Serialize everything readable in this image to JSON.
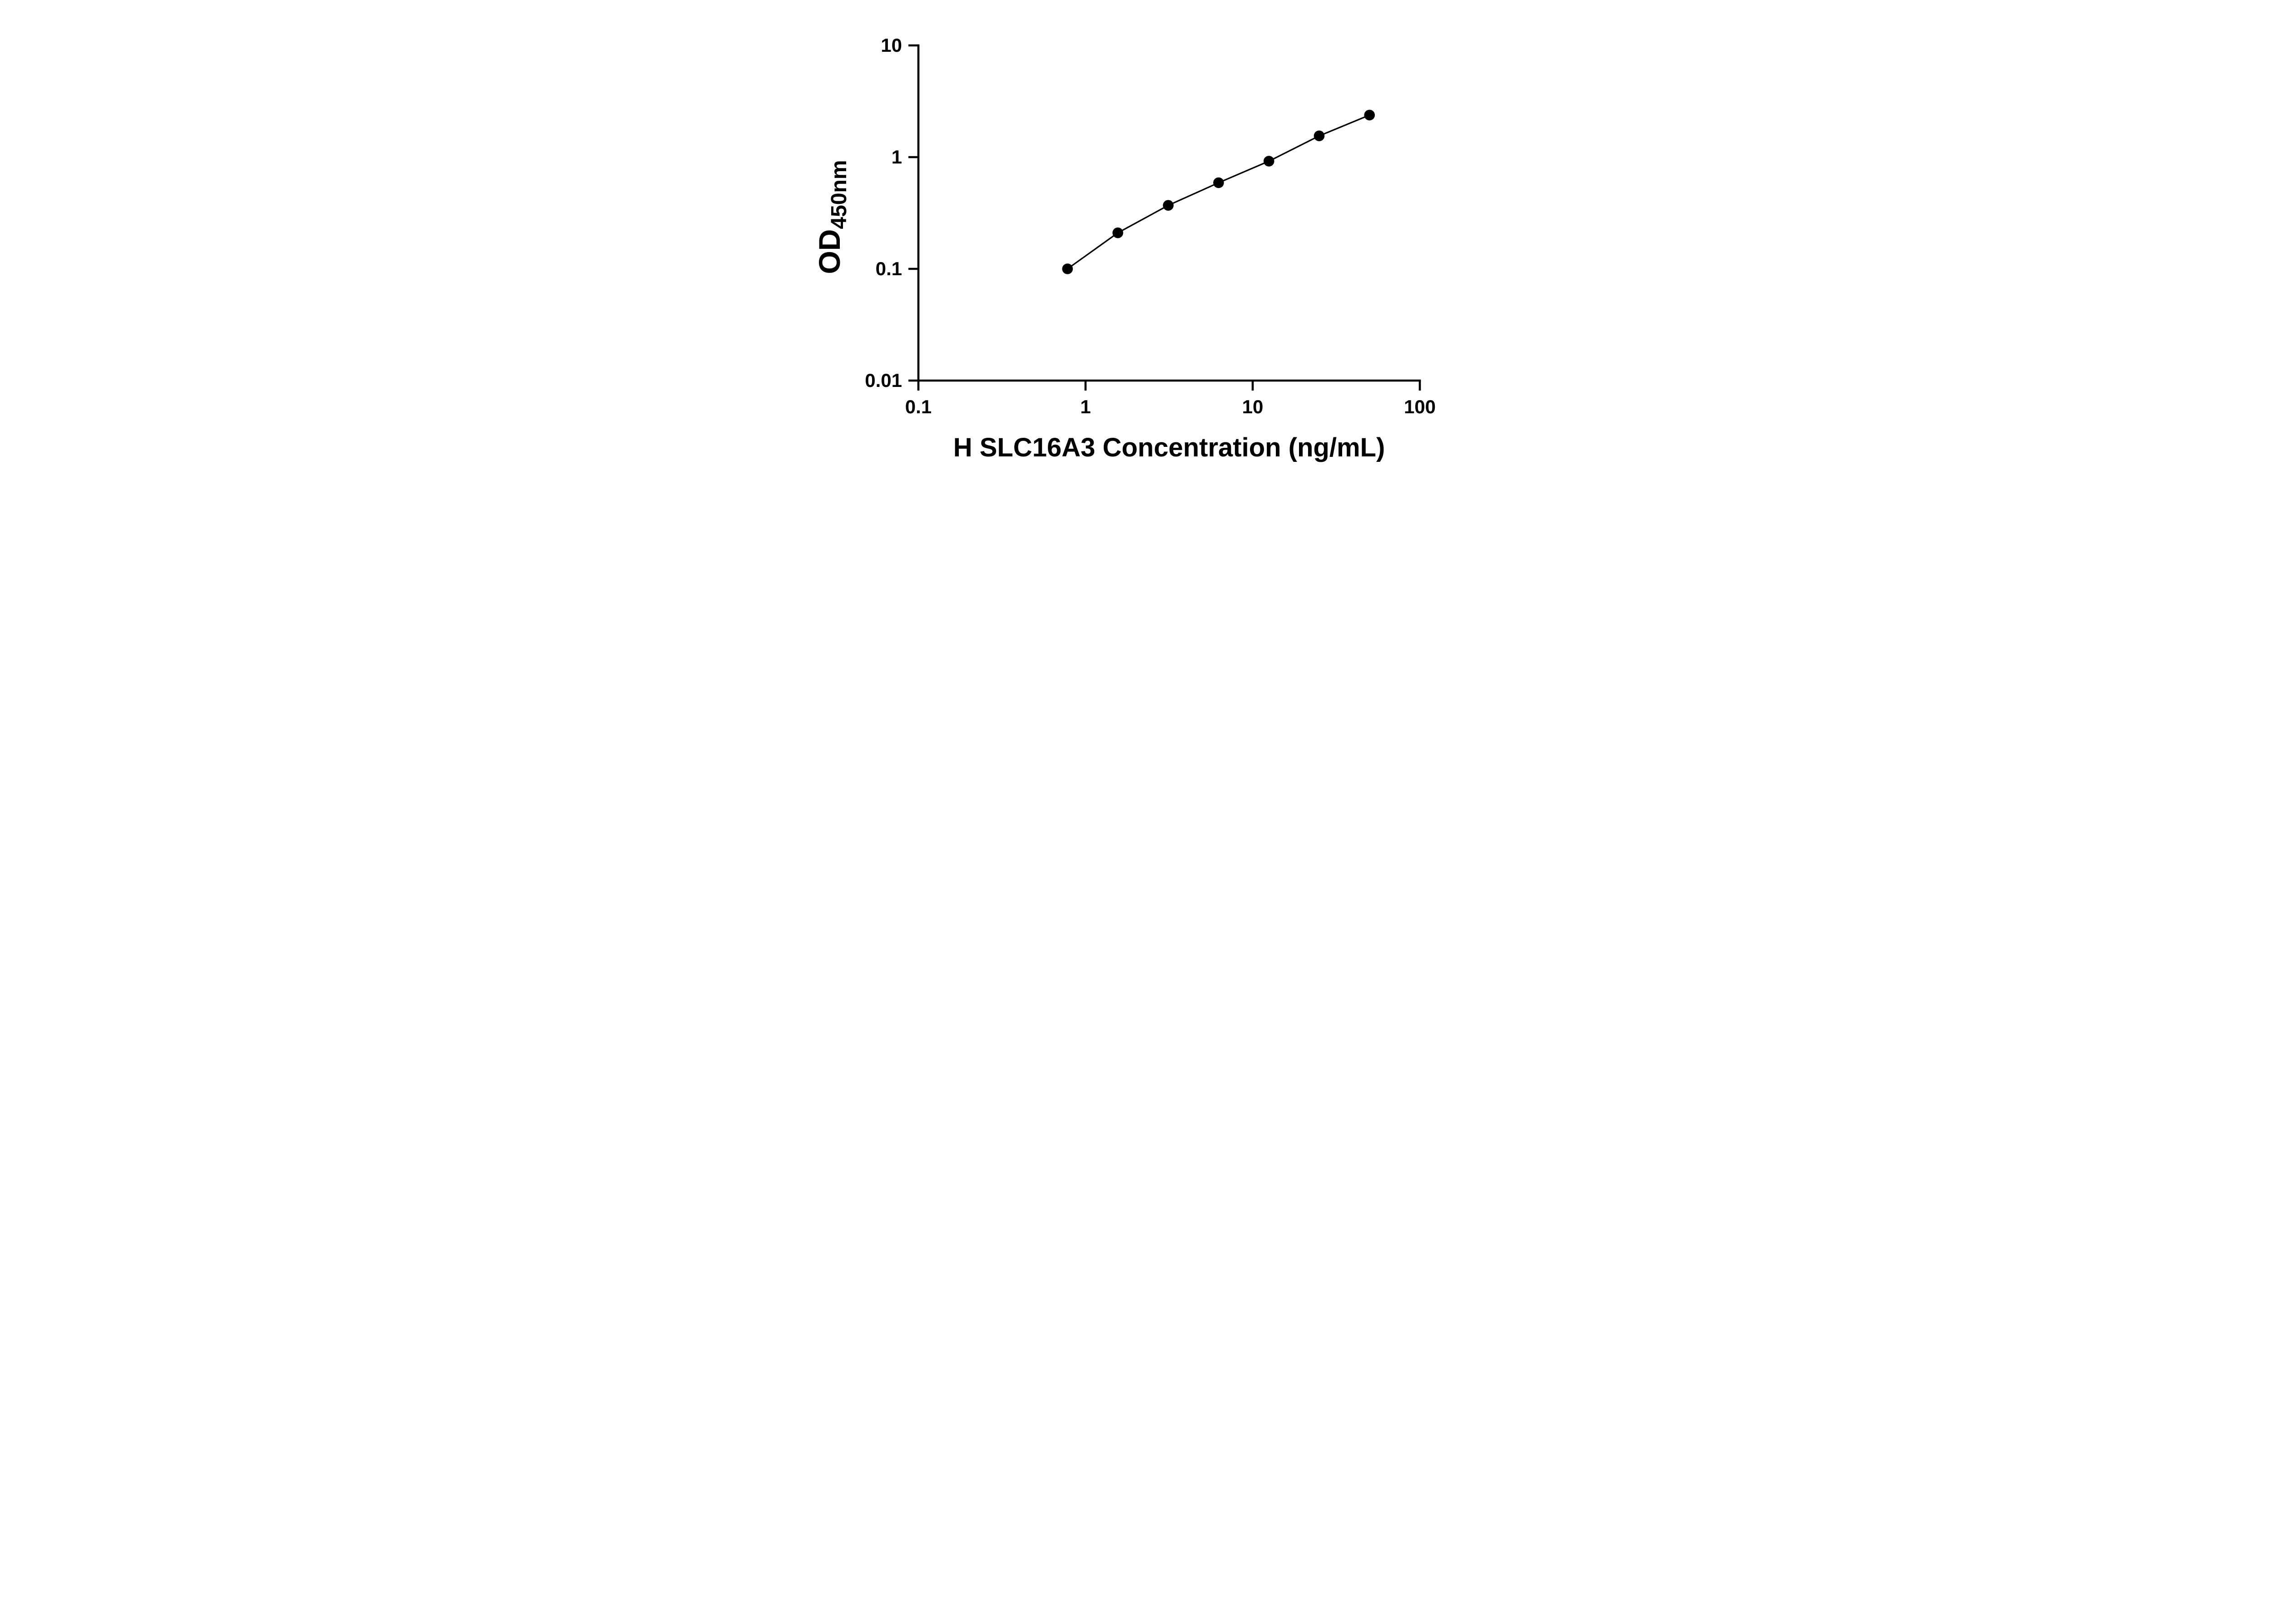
{
  "chart_data": {
    "type": "scatter",
    "title": "",
    "x": [
      0.78,
      1.56,
      3.125,
      6.25,
      12.5,
      25,
      50
    ],
    "y": [
      0.1,
      0.21,
      0.37,
      0.59,
      0.92,
      1.55,
      2.38
    ],
    "xlabel": "H SLC16A3 Concentration (ng/mL)",
    "ylabel": "OD450nm",
    "ylabel_main": "OD",
    "ylabel_sub": "450nm",
    "xscale": "log",
    "yscale": "log",
    "xlim": [
      0.1,
      100
    ],
    "ylim": [
      0.01,
      10
    ],
    "x_ticks": [
      0.1,
      1,
      10,
      100
    ],
    "x_tick_labels": [
      "0.1",
      "1",
      "10",
      "100"
    ],
    "y_ticks": [
      0.01,
      0.1,
      1,
      10
    ],
    "y_tick_labels": [
      "0.01",
      "0.1",
      "1",
      "10"
    ],
    "line": true,
    "grid": false,
    "legend_position": "none",
    "marker_color": "#000000",
    "line_color": "#000000",
    "axis_color": "#000000",
    "background_color": "#ffffff"
  }
}
